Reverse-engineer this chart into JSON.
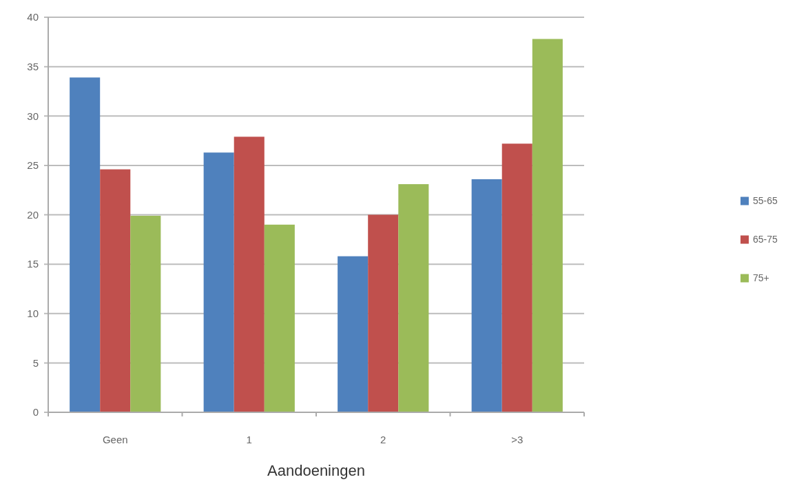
{
  "chart_data": {
    "type": "bar",
    "xlabel": "Aandoeningen",
    "categories": [
      "Geen",
      "1",
      "2",
      ">3"
    ],
    "series": [
      {
        "name": "55-65",
        "color": "#4f81bd",
        "values": [
          33.9,
          26.3,
          15.8,
          23.6
        ]
      },
      {
        "name": "65-75",
        "color": "#c0504d",
        "values": [
          24.6,
          27.9,
          20,
          27.2
        ]
      },
      {
        "name": "75+",
        "color": "#9bbb59",
        "values": [
          19.9,
          19,
          23.1,
          37.8
        ]
      }
    ],
    "ylim": [
      0,
      40
    ],
    "yticks": [
      0,
      5,
      10,
      15,
      20,
      25,
      30,
      35,
      40
    ],
    "grid": "y",
    "legend": "right"
  }
}
